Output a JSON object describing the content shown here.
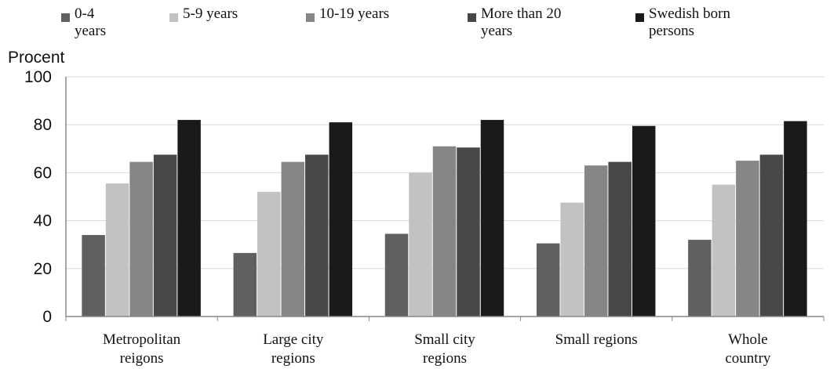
{
  "chart_data": {
    "type": "bar",
    "ylabel": "Procent",
    "xlabel": "",
    "ylim": [
      0,
      100
    ],
    "yticks": [
      0,
      20,
      40,
      60,
      80,
      100
    ],
    "grid": true,
    "legend_position": "top",
    "categories": [
      [
        "Metropolitan",
        "reigons"
      ],
      [
        "Large city",
        "regions"
      ],
      [
        "Small city",
        "regions"
      ],
      [
        "Small regions"
      ],
      [
        "Whole",
        "country"
      ]
    ],
    "series": [
      {
        "name": [
          "0-4",
          "years"
        ],
        "color": "#606060",
        "values": [
          34,
          26.5,
          34.5,
          30.5,
          32
        ]
      },
      {
        "name": [
          "5-9 years"
        ],
        "color": "#c2c2c2",
        "values": [
          55.5,
          52,
          60,
          47.5,
          55
        ]
      },
      {
        "name": [
          "10-19 years"
        ],
        "color": "#868686",
        "values": [
          64.5,
          64.5,
          71,
          63,
          65
        ]
      },
      {
        "name": [
          "More than 20",
          "years"
        ],
        "color": "#484848",
        "values": [
          67.5,
          67.5,
          70.5,
          64.5,
          67.5
        ]
      },
      {
        "name": [
          "Swedish born",
          "persons"
        ],
        "color": "#1a1a1a",
        "values": [
          82,
          81,
          82,
          79.5,
          81.5
        ]
      }
    ]
  }
}
